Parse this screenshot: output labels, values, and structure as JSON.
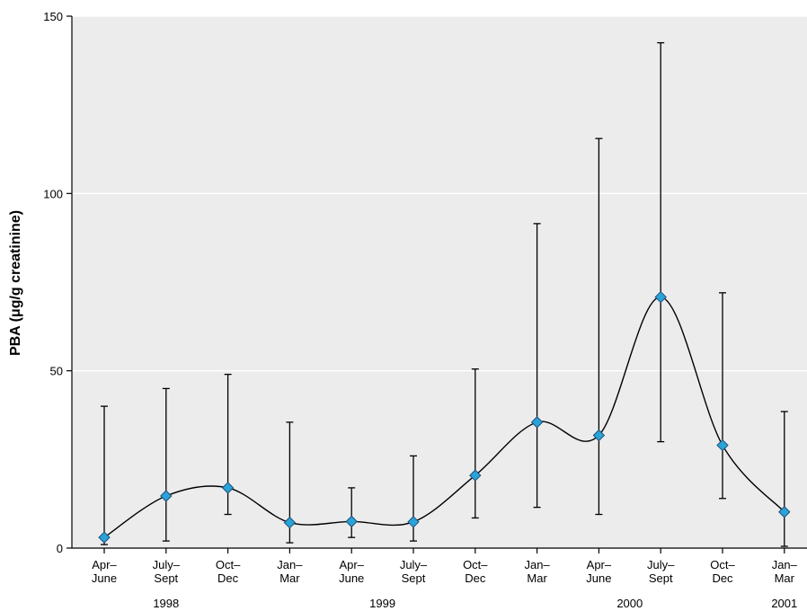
{
  "chart_data": {
    "type": "line",
    "title": "",
    "ylabel": "PBA (μg/g creatinine)",
    "xlabel": "",
    "ylim": [
      0,
      150
    ],
    "yticks": [
      0,
      50,
      100,
      150
    ],
    "grid": true,
    "categories": [
      [
        "Apr–",
        "June"
      ],
      [
        "July–",
        "Sept"
      ],
      [
        "Oct–",
        "Dec"
      ],
      [
        "Jan–",
        "Mar"
      ],
      [
        "Apr–",
        "June"
      ],
      [
        "July–",
        "Sept"
      ],
      [
        "Oct–",
        "Dec"
      ],
      [
        "Jan–",
        "Mar"
      ],
      [
        "Apr–",
        "June"
      ],
      [
        "July–",
        "Sept"
      ],
      [
        "Oct–",
        "Dec"
      ],
      [
        "Jan–",
        "Mar"
      ]
    ],
    "year_labels": [
      {
        "label": "1998",
        "index": 1
      },
      {
        "label": "1999",
        "index": 4.5
      },
      {
        "label": "2000",
        "index": 8.5
      },
      {
        "label": "2001",
        "index": 11
      }
    ],
    "series": [
      {
        "values": [
          3,
          14.7,
          17,
          7.2,
          7.5,
          7.4,
          20.5,
          35.5,
          31.8,
          70.8,
          29,
          10.2
        ],
        "error_low": [
          1,
          2,
          9.5,
          1.5,
          3,
          2,
          8.5,
          11.5,
          9.5,
          30,
          14,
          0.5
        ],
        "error_high": [
          40,
          45,
          49,
          35.5,
          17,
          26,
          50.5,
          91.5,
          115.5,
          142.5,
          72,
          38.5
        ],
        "color": "#2aa3d8",
        "line_color": "#000000"
      }
    ]
  }
}
